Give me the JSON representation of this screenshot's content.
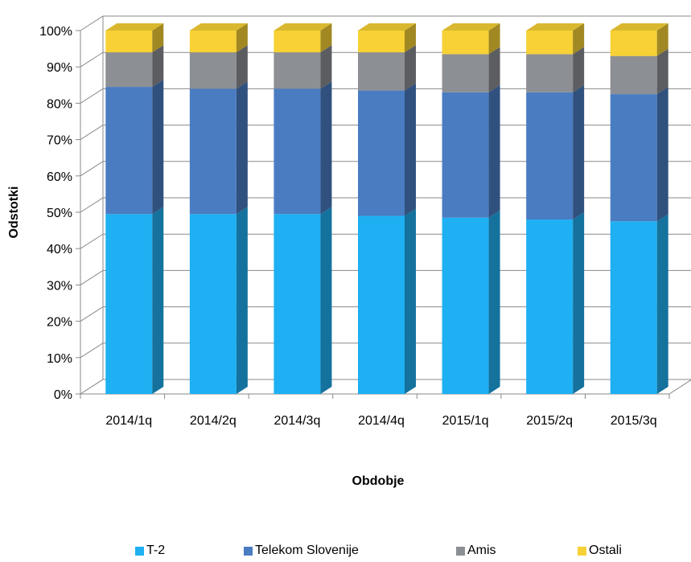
{
  "chart_data": {
    "type": "bar",
    "stacked": true,
    "style": "3d-column-100-percent",
    "categories": [
      "2014/1q",
      "2014/2q",
      "2014/3q",
      "2014/4q",
      "2015/1q",
      "2015/2q",
      "2015/3q"
    ],
    "series": [
      {
        "name": "T-2",
        "color": "#1EB0F2",
        "values": [
          49.5,
          49.5,
          49.5,
          49.0,
          48.5,
          48.0,
          47.5
        ]
      },
      {
        "name": "Telekom Slovenije",
        "color": "#4A7CC2",
        "values": [
          35.0,
          34.5,
          34.5,
          34.5,
          34.5,
          35.0,
          35.0
        ]
      },
      {
        "name": "Amis",
        "color": "#8C8F93",
        "values": [
          9.5,
          10.0,
          10.0,
          10.5,
          10.5,
          10.5,
          10.5
        ]
      },
      {
        "name": "Ostali",
        "color": "#F7D135",
        "values": [
          6.0,
          6.0,
          6.0,
          6.0,
          6.5,
          6.5,
          7.0
        ]
      }
    ],
    "yticks": [
      "0%",
      "10%",
      "20%",
      "30%",
      "40%",
      "50%",
      "60%",
      "70%",
      "80%",
      "90%",
      "100%"
    ],
    "ylim": [
      0,
      100
    ],
    "xlabel": "Obdobje",
    "ylabel": "Odstotki",
    "grid": true,
    "legend_position": "bottom"
  }
}
